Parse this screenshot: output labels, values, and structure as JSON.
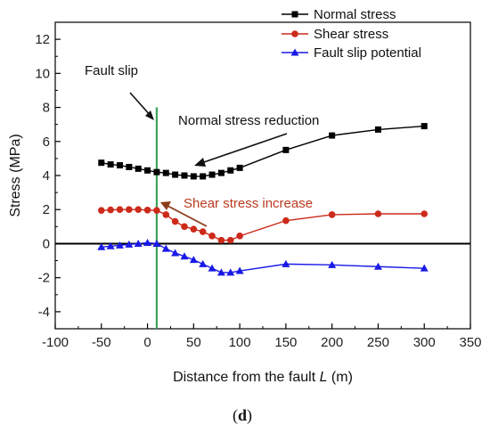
{
  "chart_data": {
    "type": "line",
    "title": "",
    "xlabel_prefix": "Distance from the fault ",
    "xlabel_var": "L",
    "xlabel_suffix": " (m)",
    "ylabel": "Stress (MPa)",
    "xlim": [
      -100,
      350
    ],
    "ylim": [
      -5,
      13
    ],
    "xticks": [
      -100,
      -50,
      0,
      50,
      100,
      150,
      200,
      250,
      300,
      350
    ],
    "yticks": [
      -4,
      -2,
      0,
      2,
      4,
      6,
      8,
      10,
      12
    ],
    "legend_position": "top-right",
    "series": [
      {
        "name": "Normal stress",
        "color": "#000000",
        "marker": "square",
        "x": [
          -50,
          -40,
          -30,
          -20,
          -10,
          0,
          10,
          20,
          30,
          40,
          50,
          60,
          70,
          80,
          90,
          100,
          150,
          200,
          250,
          300
        ],
        "y": [
          4.75,
          4.65,
          4.6,
          4.5,
          4.4,
          4.3,
          4.2,
          4.15,
          4.05,
          4.0,
          3.95,
          3.95,
          4.05,
          4.15,
          4.3,
          4.45,
          5.5,
          6.35,
          6.7,
          6.9
        ]
      },
      {
        "name": "Shear stress",
        "color": "#cc2a1a",
        "marker": "circle",
        "x": [
          -50,
          -40,
          -30,
          -20,
          -10,
          0,
          10,
          20,
          30,
          40,
          50,
          60,
          70,
          80,
          90,
          100,
          150,
          200,
          250,
          300
        ],
        "y": [
          1.95,
          1.98,
          2.0,
          2.0,
          2.0,
          1.97,
          1.95,
          1.7,
          1.3,
          1.0,
          0.85,
          0.7,
          0.45,
          0.2,
          0.2,
          0.45,
          1.35,
          1.7,
          1.75,
          1.75
        ]
      },
      {
        "name": "Fault slip potential",
        "color": "#1a1ae6",
        "marker": "triangle",
        "x": [
          -50,
          -40,
          -30,
          -20,
          -10,
          0,
          10,
          20,
          30,
          40,
          50,
          60,
          70,
          80,
          90,
          100,
          150,
          200,
          250,
          300
        ],
        "y": [
          -0.2,
          -0.15,
          -0.1,
          -0.05,
          0.0,
          0.05,
          0.0,
          -0.3,
          -0.55,
          -0.75,
          -0.95,
          -1.2,
          -1.45,
          -1.7,
          -1.7,
          -1.6,
          -1.2,
          -1.25,
          -1.35,
          -1.45
        ]
      }
    ],
    "reference_lines": {
      "zero_line_color": "#000000",
      "fault_line_x": 10,
      "fault_line_color": "#3aa65a"
    },
    "annotations": {
      "fault_slip": {
        "text": "Fault slip",
        "color": "#111111"
      },
      "normal_reduction": {
        "text": "Normal stress reduction",
        "color": "#111111"
      },
      "shear_increase": {
        "text": "Shear stress increase",
        "color": "#b83a1e"
      }
    }
  },
  "panel_label": "(d)"
}
